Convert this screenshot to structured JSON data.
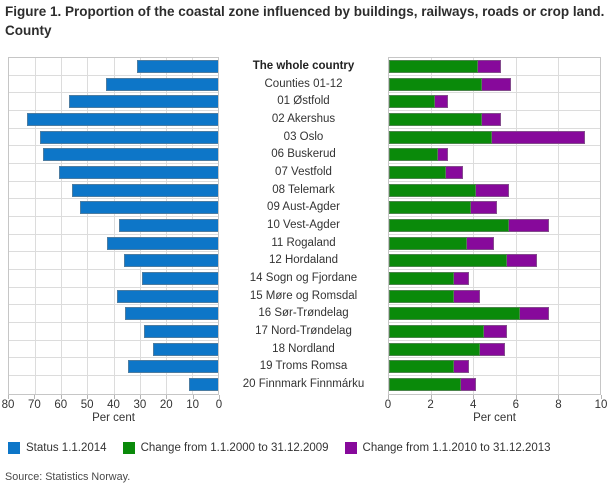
{
  "title": "Figure 1. Proportion of the coastal zone influenced by buildings, railways, roads or crop land. County",
  "source": "Source: Statistics Norway.",
  "colors": {
    "status": "#0d76c8",
    "change_2000_2009": "#0a8a0a",
    "change_2010_2013": "#87099b",
    "grid": "#dcdcdc",
    "plot_border": "#c6c6c6"
  },
  "legend": [
    {
      "label": "Status 1.1.2014",
      "color": "#0d76c8"
    },
    {
      "label": "Change from 1.1.2000 to 31.12.2009",
      "color": "#0a8a0a"
    },
    {
      "label": "Change from 1.1.2010 to 31.12.2013",
      "color": "#87099b"
    }
  ],
  "chart_data": {
    "type": "bar",
    "orientation": "horizontal",
    "grid": true,
    "emphasized_category": "The whole country",
    "categories": [
      "The whole country",
      "Counties 01-12",
      "01 Østfold",
      "02 Akershus",
      "03 Oslo",
      "06 Buskerud",
      "07 Vestfold",
      "08 Telemark",
      "09 Aust-Agder",
      "10 Vest-Agder",
      "11 Rogaland",
      "12 Hordaland",
      "14 Sogn og Fjordane",
      "15 Møre og Romsdal",
      "16 Sør-Trøndelag",
      "17 Nord-Trøndelag",
      "18 Nordland",
      "19 Troms Romsa",
      "20 Finnmark Finnmárku"
    ],
    "series": [
      {
        "name": "Status 1.1.2014",
        "panel": "left",
        "color": "#0d76c8",
        "values": [
          31,
          43,
          57,
          73,
          68,
          67,
          61,
          56,
          53,
          38,
          42.5,
          36,
          29,
          38.5,
          35.5,
          28.5,
          25,
          34.5,
          11
        ]
      },
      {
        "name": "Change from 1.1.2000 to 31.12.2009",
        "panel": "right",
        "stack": "change",
        "color": "#0a8a0a",
        "values": [
          4.2,
          4.4,
          2.2,
          4.4,
          4.9,
          2.3,
          2.7,
          4.1,
          3.9,
          5.7,
          3.7,
          5.6,
          3.1,
          3.1,
          6.2,
          4.5,
          4.3,
          3.1,
          3.4
        ]
      },
      {
        "name": "Change from 1.1.2010 to 31.12.2013",
        "panel": "right",
        "stack": "change",
        "color": "#87099b",
        "values": [
          1.1,
          1.4,
          0.6,
          0.9,
          4.4,
          0.5,
          0.8,
          1.6,
          1.2,
          1.9,
          1.3,
          1.4,
          0.7,
          1.2,
          1.4,
          1.1,
          1.2,
          0.7,
          0.7
        ]
      }
    ],
    "left_axis": {
      "label": "Per cent",
      "ticks": [
        80,
        70,
        60,
        50,
        40,
        30,
        20,
        10,
        0
      ],
      "min": 0,
      "max": 80,
      "reversed": true
    },
    "right_axis": {
      "label": "Per cent",
      "ticks": [
        0,
        2,
        4,
        6,
        8,
        10
      ],
      "min": 0,
      "max": 10,
      "reversed": false
    }
  }
}
